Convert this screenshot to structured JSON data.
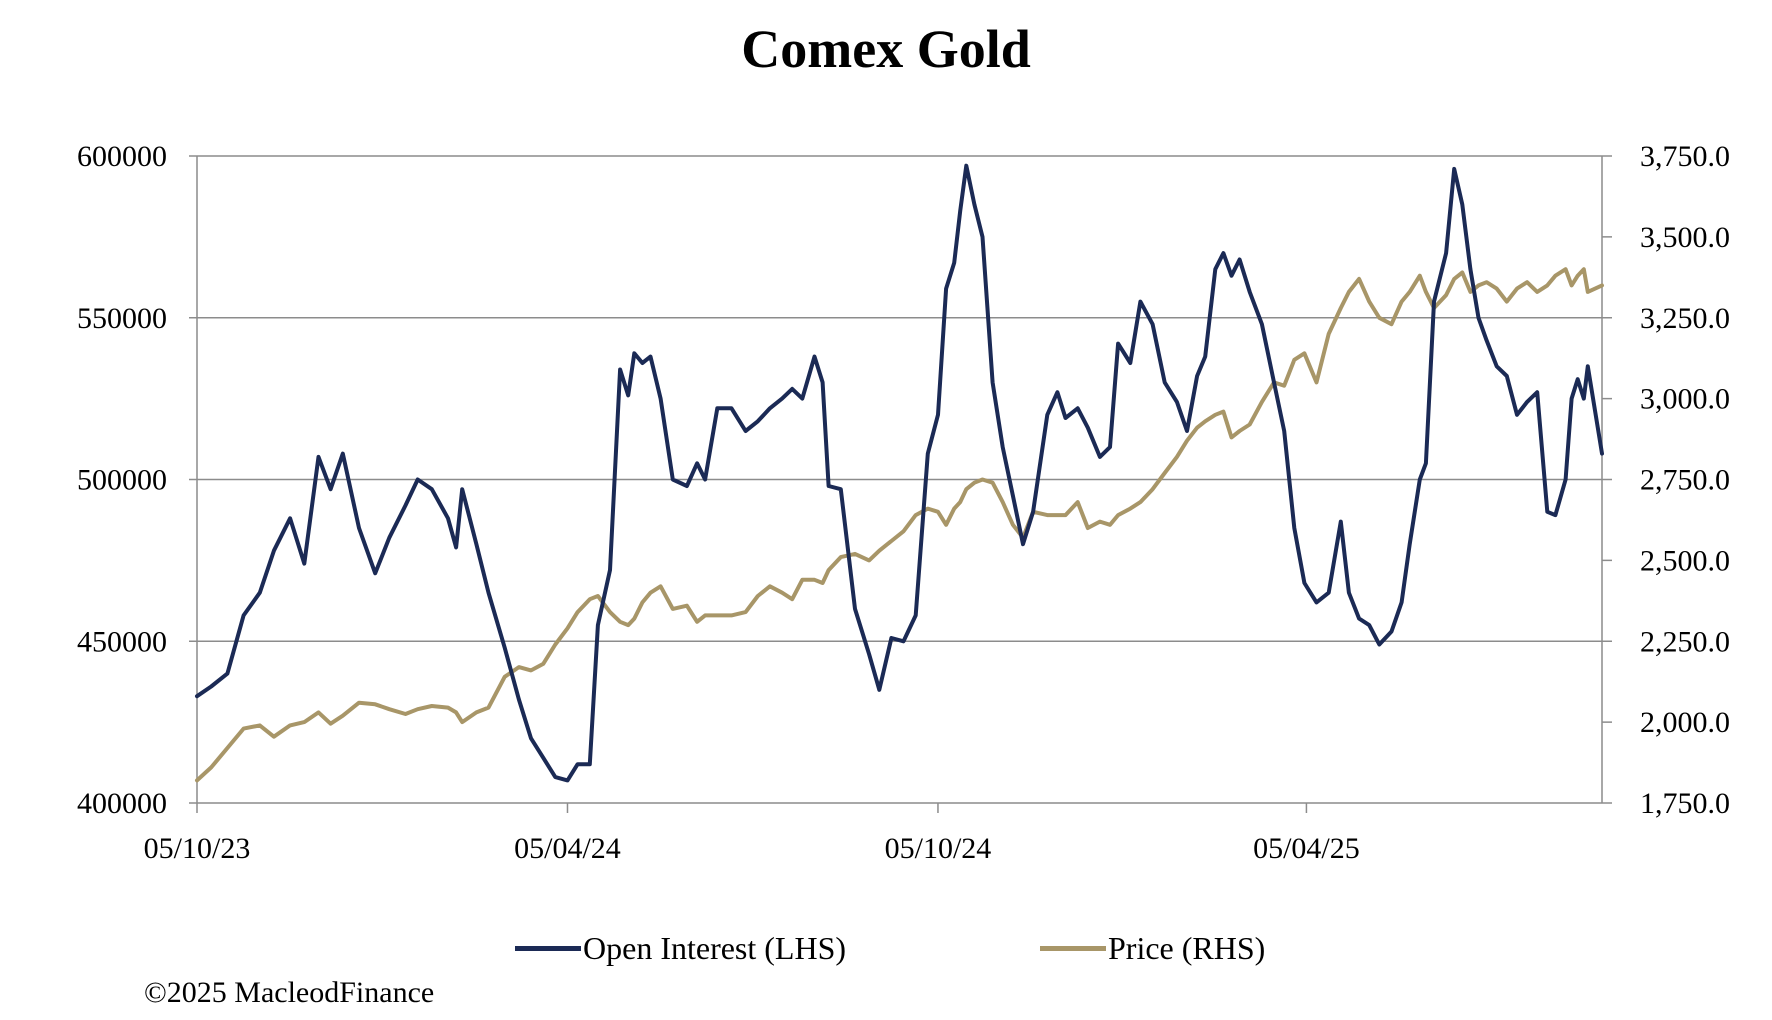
{
  "chart_data": {
    "type": "line",
    "title": "Comex Gold",
    "x_tick_labels": [
      "05/10/23",
      "05/04/24",
      "05/10/24",
      "05/04/25"
    ],
    "x_range": [
      "2023-10-05",
      "2025-08-29"
    ],
    "y_left": {
      "ylim": [
        400000,
        600000
      ],
      "ticks": [
        "400000",
        "450000",
        "500000",
        "550000",
        "600000"
      ]
    },
    "y_right": {
      "ylim": [
        1750,
        3750
      ],
      "ticks": [
        "1,750.0",
        "2,000.0",
        "2,250.0",
        "2,500.0",
        "2,750.0",
        "3,000.0",
        "3,250.0",
        "3,500.0",
        "3,750.0"
      ]
    },
    "grid": "horizontal",
    "legend_position": "bottom",
    "series": [
      {
        "name": "Open Interest (LHS)",
        "axis": "left",
        "color": "#1b2a55",
        "points": [
          [
            "2023-10-05",
            433000
          ],
          [
            "2023-10-12",
            436000
          ],
          [
            "2023-10-20",
            440000
          ],
          [
            "2023-10-28",
            458000
          ],
          [
            "2023-11-05",
            465000
          ],
          [
            "2023-11-12",
            478000
          ],
          [
            "2023-11-20",
            488000
          ],
          [
            "2023-11-27",
            474000
          ],
          [
            "2023-12-04",
            507000
          ],
          [
            "2023-12-10",
            497000
          ],
          [
            "2023-12-16",
            508000
          ],
          [
            "2023-12-24",
            485000
          ],
          [
            "2024-01-01",
            471000
          ],
          [
            "2024-01-08",
            482000
          ],
          [
            "2024-01-16",
            492000
          ],
          [
            "2024-01-22",
            500000
          ],
          [
            "2024-01-29",
            497000
          ],
          [
            "2024-02-06",
            488000
          ],
          [
            "2024-02-10",
            479000
          ],
          [
            "2024-02-13",
            497000
          ],
          [
            "2024-02-20",
            480000
          ],
          [
            "2024-02-26",
            465000
          ],
          [
            "2024-03-05",
            448000
          ],
          [
            "2024-03-12",
            432000
          ],
          [
            "2024-03-18",
            420000
          ],
          [
            "2024-03-24",
            414000
          ],
          [
            "2024-03-30",
            408000
          ],
          [
            "2024-04-05",
            407000
          ],
          [
            "2024-04-10",
            412000
          ],
          [
            "2024-04-16",
            412000
          ],
          [
            "2024-04-20",
            455000
          ],
          [
            "2024-04-26",
            472000
          ],
          [
            "2024-05-01",
            534000
          ],
          [
            "2024-05-05",
            526000
          ],
          [
            "2024-05-08",
            539000
          ],
          [
            "2024-05-12",
            536000
          ],
          [
            "2024-05-16",
            538000
          ],
          [
            "2024-05-21",
            525000
          ],
          [
            "2024-05-27",
            500000
          ],
          [
            "2024-06-03",
            498000
          ],
          [
            "2024-06-08",
            505000
          ],
          [
            "2024-06-12",
            500000
          ],
          [
            "2024-06-18",
            522000
          ],
          [
            "2024-06-25",
            522000
          ],
          [
            "2024-07-02",
            515000
          ],
          [
            "2024-07-08",
            518000
          ],
          [
            "2024-07-14",
            522000
          ],
          [
            "2024-07-20",
            525000
          ],
          [
            "2024-07-25",
            528000
          ],
          [
            "2024-07-30",
            525000
          ],
          [
            "2024-08-05",
            538000
          ],
          [
            "2024-08-09",
            530000
          ],
          [
            "2024-08-12",
            498000
          ],
          [
            "2024-08-18",
            497000
          ],
          [
            "2024-08-25",
            460000
          ],
          [
            "2024-09-01",
            446000
          ],
          [
            "2024-09-06",
            435000
          ],
          [
            "2024-09-12",
            451000
          ],
          [
            "2024-09-18",
            450000
          ],
          [
            "2024-09-24",
            458000
          ],
          [
            "2024-09-30",
            508000
          ],
          [
            "2024-10-05",
            520000
          ],
          [
            "2024-10-09",
            559000
          ],
          [
            "2024-10-13",
            567000
          ],
          [
            "2024-10-16",
            583000
          ],
          [
            "2024-10-19",
            597000
          ],
          [
            "2024-10-23",
            585000
          ],
          [
            "2024-10-27",
            575000
          ],
          [
            "2024-11-01",
            530000
          ],
          [
            "2024-11-06",
            510000
          ],
          [
            "2024-11-11",
            495000
          ],
          [
            "2024-11-16",
            480000
          ],
          [
            "2024-11-21",
            490000
          ],
          [
            "2024-11-28",
            520000
          ],
          [
            "2024-12-03",
            527000
          ],
          [
            "2024-12-07",
            519000
          ],
          [
            "2024-12-13",
            522000
          ],
          [
            "2024-12-18",
            516000
          ],
          [
            "2024-12-24",
            507000
          ],
          [
            "2024-12-29",
            510000
          ],
          [
            "2025-01-02",
            542000
          ],
          [
            "2025-01-08",
            536000
          ],
          [
            "2025-01-13",
            555000
          ],
          [
            "2025-01-19",
            548000
          ],
          [
            "2025-01-25",
            530000
          ],
          [
            "2025-01-31",
            524000
          ],
          [
            "2025-02-05",
            515000
          ],
          [
            "2025-02-10",
            532000
          ],
          [
            "2025-02-14",
            538000
          ],
          [
            "2025-02-19",
            565000
          ],
          [
            "2025-02-23",
            570000
          ],
          [
            "2025-02-27",
            563000
          ],
          [
            "2025-03-03",
            568000
          ],
          [
            "2025-03-08",
            558000
          ],
          [
            "2025-03-14",
            548000
          ],
          [
            "2025-03-20",
            530000
          ],
          [
            "2025-03-25",
            515000
          ],
          [
            "2025-03-30",
            485000
          ],
          [
            "2025-04-04",
            468000
          ],
          [
            "2025-04-10",
            462000
          ],
          [
            "2025-04-16",
            465000
          ],
          [
            "2025-04-22",
            487000
          ],
          [
            "2025-04-26",
            465000
          ],
          [
            "2025-05-01",
            457000
          ],
          [
            "2025-05-06",
            455000
          ],
          [
            "2025-05-11",
            449000
          ],
          [
            "2025-05-17",
            453000
          ],
          [
            "2025-05-22",
            462000
          ],
          [
            "2025-05-26",
            480000
          ],
          [
            "2025-05-31",
            500000
          ],
          [
            "2025-06-03",
            505000
          ],
          [
            "2025-06-07",
            555000
          ],
          [
            "2025-06-13",
            570000
          ],
          [
            "2025-06-17",
            596000
          ],
          [
            "2025-06-21",
            585000
          ],
          [
            "2025-06-25",
            565000
          ],
          [
            "2025-06-29",
            550000
          ],
          [
            "2025-07-03",
            543000
          ],
          [
            "2025-07-08",
            535000
          ],
          [
            "2025-07-13",
            532000
          ],
          [
            "2025-07-18",
            520000
          ],
          [
            "2025-07-23",
            524000
          ],
          [
            "2025-07-28",
            527000
          ],
          [
            "2025-08-02",
            490000
          ],
          [
            "2025-08-06",
            489000
          ],
          [
            "2025-08-11",
            500000
          ],
          [
            "2025-08-14",
            525000
          ],
          [
            "2025-08-17",
            531000
          ],
          [
            "2025-08-20",
            525000
          ],
          [
            "2025-08-22",
            535000
          ],
          [
            "2025-08-29",
            508000
          ]
        ]
      },
      {
        "name": "Price (RHS)",
        "axis": "right",
        "color": "#a89668",
        "points": [
          [
            "2023-10-05",
            1820
          ],
          [
            "2023-10-12",
            1860
          ],
          [
            "2023-10-20",
            1920
          ],
          [
            "2023-10-28",
            1980
          ],
          [
            "2023-11-05",
            1990
          ],
          [
            "2023-11-12",
            1955
          ],
          [
            "2023-11-20",
            1990
          ],
          [
            "2023-11-27",
            2000
          ],
          [
            "2023-12-04",
            2030
          ],
          [
            "2023-12-10",
            1995
          ],
          [
            "2023-12-16",
            2020
          ],
          [
            "2023-12-24",
            2060
          ],
          [
            "2024-01-01",
            2055
          ],
          [
            "2024-01-08",
            2040
          ],
          [
            "2024-01-16",
            2025
          ],
          [
            "2024-01-22",
            2040
          ],
          [
            "2024-01-29",
            2050
          ],
          [
            "2024-02-06",
            2045
          ],
          [
            "2024-02-10",
            2030
          ],
          [
            "2024-02-13",
            2000
          ],
          [
            "2024-02-20",
            2030
          ],
          [
            "2024-02-26",
            2045
          ],
          [
            "2024-03-05",
            2140
          ],
          [
            "2024-03-12",
            2170
          ],
          [
            "2024-03-18",
            2160
          ],
          [
            "2024-03-24",
            2180
          ],
          [
            "2024-03-30",
            2240
          ],
          [
            "2024-04-05",
            2290
          ],
          [
            "2024-04-10",
            2340
          ],
          [
            "2024-04-16",
            2380
          ],
          [
            "2024-04-20",
            2390
          ],
          [
            "2024-04-26",
            2340
          ],
          [
            "2024-05-01",
            2310
          ],
          [
            "2024-05-05",
            2300
          ],
          [
            "2024-05-08",
            2320
          ],
          [
            "2024-05-12",
            2370
          ],
          [
            "2024-05-16",
            2400
          ],
          [
            "2024-05-21",
            2420
          ],
          [
            "2024-05-27",
            2350
          ],
          [
            "2024-06-03",
            2360
          ],
          [
            "2024-06-08",
            2310
          ],
          [
            "2024-06-12",
            2330
          ],
          [
            "2024-06-18",
            2330
          ],
          [
            "2024-06-25",
            2330
          ],
          [
            "2024-07-02",
            2340
          ],
          [
            "2024-07-08",
            2390
          ],
          [
            "2024-07-14",
            2420
          ],
          [
            "2024-07-20",
            2400
          ],
          [
            "2024-07-25",
            2380
          ],
          [
            "2024-07-30",
            2440
          ],
          [
            "2024-08-05",
            2440
          ],
          [
            "2024-08-09",
            2430
          ],
          [
            "2024-08-12",
            2470
          ],
          [
            "2024-08-18",
            2510
          ],
          [
            "2024-08-25",
            2520
          ],
          [
            "2024-09-01",
            2500
          ],
          [
            "2024-09-06",
            2530
          ],
          [
            "2024-09-12",
            2560
          ],
          [
            "2024-09-18",
            2590
          ],
          [
            "2024-09-24",
            2640
          ],
          [
            "2024-09-30",
            2660
          ],
          [
            "2024-10-05",
            2650
          ],
          [
            "2024-10-09",
            2610
          ],
          [
            "2024-10-13",
            2660
          ],
          [
            "2024-10-16",
            2680
          ],
          [
            "2024-10-19",
            2720
          ],
          [
            "2024-10-23",
            2740
          ],
          [
            "2024-10-27",
            2750
          ],
          [
            "2024-11-01",
            2740
          ],
          [
            "2024-11-06",
            2680
          ],
          [
            "2024-11-11",
            2610
          ],
          [
            "2024-11-16",
            2570
          ],
          [
            "2024-11-21",
            2650
          ],
          [
            "2024-11-28",
            2640
          ],
          [
            "2024-12-03",
            2640
          ],
          [
            "2024-12-07",
            2640
          ],
          [
            "2024-12-13",
            2680
          ],
          [
            "2024-12-18",
            2600
          ],
          [
            "2024-12-24",
            2620
          ],
          [
            "2024-12-29",
            2610
          ],
          [
            "2025-01-02",
            2640
          ],
          [
            "2025-01-08",
            2660
          ],
          [
            "2025-01-13",
            2680
          ],
          [
            "2025-01-19",
            2720
          ],
          [
            "2025-01-25",
            2770
          ],
          [
            "2025-01-31",
            2820
          ],
          [
            "2025-02-05",
            2870
          ],
          [
            "2025-02-10",
            2910
          ],
          [
            "2025-02-14",
            2930
          ],
          [
            "2025-02-19",
            2950
          ],
          [
            "2025-02-23",
            2960
          ],
          [
            "2025-02-27",
            2880
          ],
          [
            "2025-03-03",
            2900
          ],
          [
            "2025-03-08",
            2920
          ],
          [
            "2025-03-14",
            2990
          ],
          [
            "2025-03-20",
            3050
          ],
          [
            "2025-03-25",
            3040
          ],
          [
            "2025-03-30",
            3120
          ],
          [
            "2025-04-04",
            3140
          ],
          [
            "2025-04-10",
            3050
          ],
          [
            "2025-04-16",
            3200
          ],
          [
            "2025-04-22",
            3280
          ],
          [
            "2025-04-26",
            3330
          ],
          [
            "2025-05-01",
            3370
          ],
          [
            "2025-05-06",
            3300
          ],
          [
            "2025-05-11",
            3250
          ],
          [
            "2025-05-17",
            3230
          ],
          [
            "2025-05-22",
            3300
          ],
          [
            "2025-05-26",
            3330
          ],
          [
            "2025-05-31",
            3380
          ],
          [
            "2025-06-03",
            3330
          ],
          [
            "2025-06-07",
            3280
          ],
          [
            "2025-06-13",
            3320
          ],
          [
            "2025-06-17",
            3370
          ],
          [
            "2025-06-21",
            3390
          ],
          [
            "2025-06-25",
            3330
          ],
          [
            "2025-06-29",
            3350
          ],
          [
            "2025-07-03",
            3360
          ],
          [
            "2025-07-08",
            3340
          ],
          [
            "2025-07-13",
            3300
          ],
          [
            "2025-07-18",
            3340
          ],
          [
            "2025-07-23",
            3360
          ],
          [
            "2025-07-28",
            3330
          ],
          [
            "2025-08-02",
            3350
          ],
          [
            "2025-08-06",
            3380
          ],
          [
            "2025-08-11",
            3400
          ],
          [
            "2025-08-14",
            3350
          ],
          [
            "2025-08-17",
            3380
          ],
          [
            "2025-08-20",
            3400
          ],
          [
            "2025-08-22",
            3330
          ],
          [
            "2025-08-29",
            3350
          ]
        ]
      }
    ]
  },
  "footer": {
    "copyright": "©2025 MacleodFinance"
  }
}
